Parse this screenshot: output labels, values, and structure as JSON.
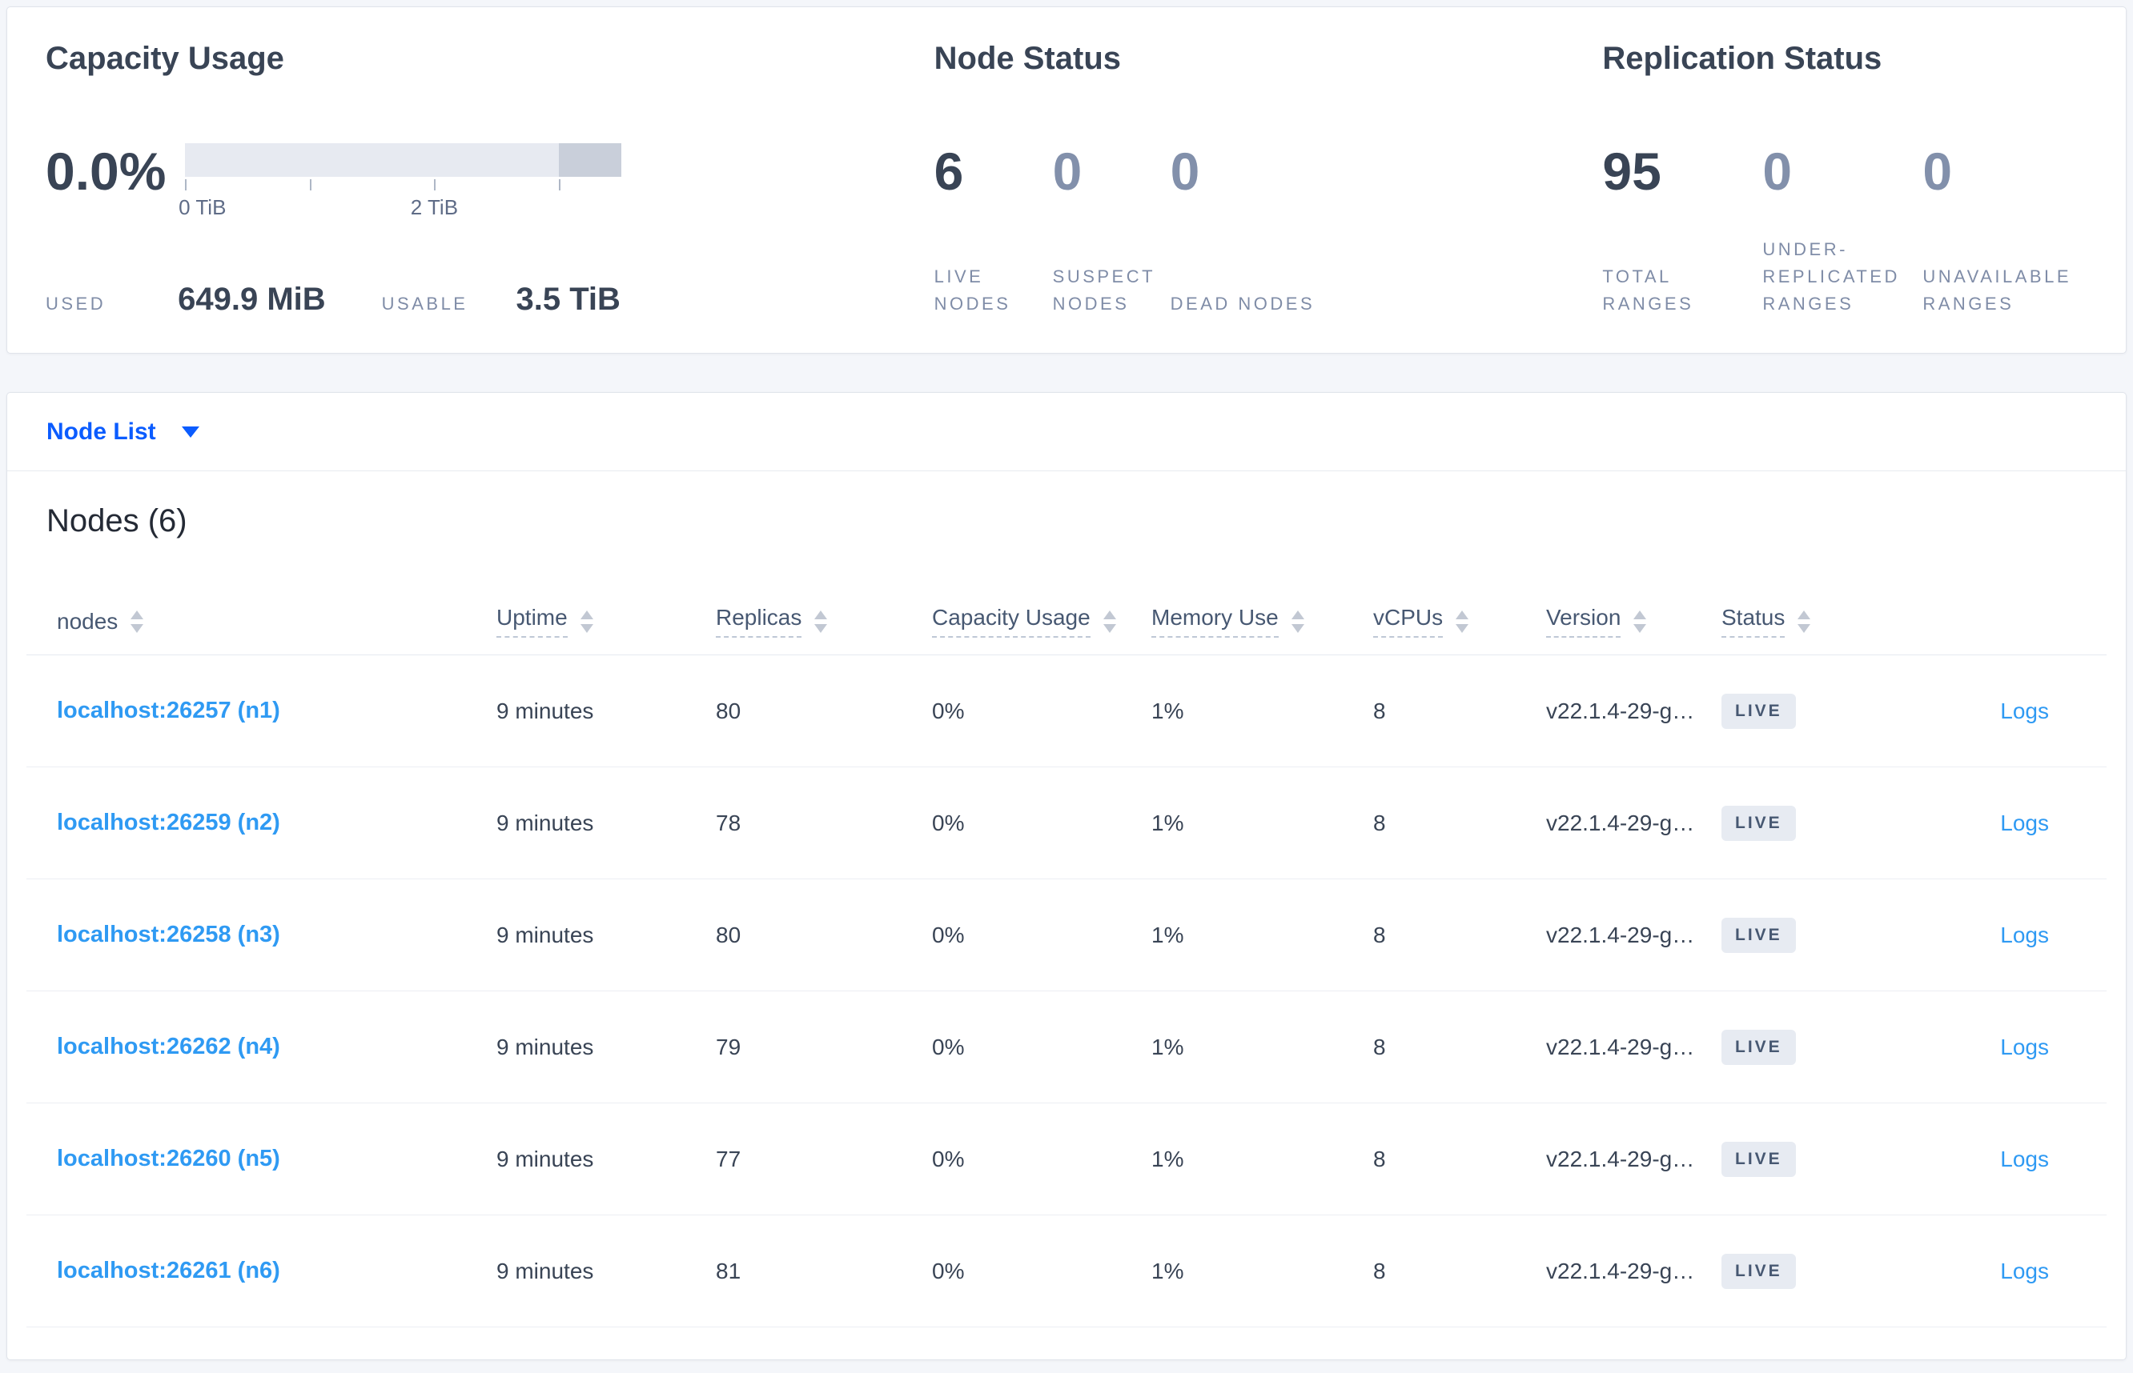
{
  "summary": {
    "capacity": {
      "title": "Capacity Usage",
      "percent": "0.0%",
      "used_label": "USED",
      "used_value": "649.9 MiB",
      "usable_label": "USABLE",
      "usable_value": "3.5 TiB",
      "axis_tick_labels": [
        "0 TiB",
        "2 TiB"
      ],
      "bar": {
        "total": "3.5 TiB",
        "used_fraction_pct": 0.0,
        "reserved_segment_start_pct": 85.71
      }
    },
    "node_status": {
      "title": "Node Status",
      "stats": [
        {
          "value": "6",
          "label": "LIVE NODES"
        },
        {
          "value": "0",
          "label": "SUSPECT NODES"
        },
        {
          "value": "0",
          "label": "DEAD NODES"
        }
      ]
    },
    "replication_status": {
      "title": "Replication Status",
      "stats": [
        {
          "value": "95",
          "label": "TOTAL RANGES"
        },
        {
          "value": "0",
          "label": "UNDER-REPLICATED RANGES"
        },
        {
          "value": "0",
          "label": "UNAVAILABLE RANGES"
        }
      ]
    }
  },
  "view_selector": {
    "label": "Node List"
  },
  "nodes_table": {
    "title": "Nodes (6)",
    "columns": [
      {
        "label": "nodes",
        "underline": false
      },
      {
        "label": "Uptime",
        "underline": true
      },
      {
        "label": "Replicas",
        "underline": true
      },
      {
        "label": "Capacity Usage",
        "underline": true
      },
      {
        "label": "Memory Use",
        "underline": true
      },
      {
        "label": "vCPUs",
        "underline": true
      },
      {
        "label": "Version",
        "underline": true
      },
      {
        "label": "Status",
        "underline": true
      },
      {
        "label": "",
        "underline": false
      }
    ],
    "rows": [
      {
        "node": "localhost:26257 (n1)",
        "uptime": "9 minutes",
        "replicas": "80",
        "capacity": "0%",
        "memory": "1%",
        "vcpus": "8",
        "version": "v22.1.4-29-g…",
        "status": "LIVE",
        "logs": "Logs"
      },
      {
        "node": "localhost:26259 (n2)",
        "uptime": "9 minutes",
        "replicas": "78",
        "capacity": "0%",
        "memory": "1%",
        "vcpus": "8",
        "version": "v22.1.4-29-g…",
        "status": "LIVE",
        "logs": "Logs"
      },
      {
        "node": "localhost:26258 (n3)",
        "uptime": "9 minutes",
        "replicas": "80",
        "capacity": "0%",
        "memory": "1%",
        "vcpus": "8",
        "version": "v22.1.4-29-g…",
        "status": "LIVE",
        "logs": "Logs"
      },
      {
        "node": "localhost:26262 (n4)",
        "uptime": "9 minutes",
        "replicas": "79",
        "capacity": "0%",
        "memory": "1%",
        "vcpus": "8",
        "version": "v22.1.4-29-g…",
        "status": "LIVE",
        "logs": "Logs"
      },
      {
        "node": "localhost:26260 (n5)",
        "uptime": "9 minutes",
        "replicas": "77",
        "capacity": "0%",
        "memory": "1%",
        "vcpus": "8",
        "version": "v22.1.4-29-g…",
        "status": "LIVE",
        "logs": "Logs"
      },
      {
        "node": "localhost:26261 (n6)",
        "uptime": "9 minutes",
        "replicas": "81",
        "capacity": "0%",
        "memory": "1%",
        "vcpus": "8",
        "version": "v22.1.4-29-g…",
        "status": "LIVE",
        "logs": "Logs"
      }
    ]
  },
  "colors": {
    "page_background": "#f4f6fa",
    "card_border": "#e0e4eb",
    "dark_slate": "#394455",
    "muted_label": "#7f8ca7",
    "dim_value": "#8290ab",
    "selector_blue": "#0b5cff",
    "link_blue": "#2f9af3",
    "badge_background": "#e7ebf2",
    "bar_track": "#e7eaf1",
    "bar_reserved": "#c9cfda"
  }
}
